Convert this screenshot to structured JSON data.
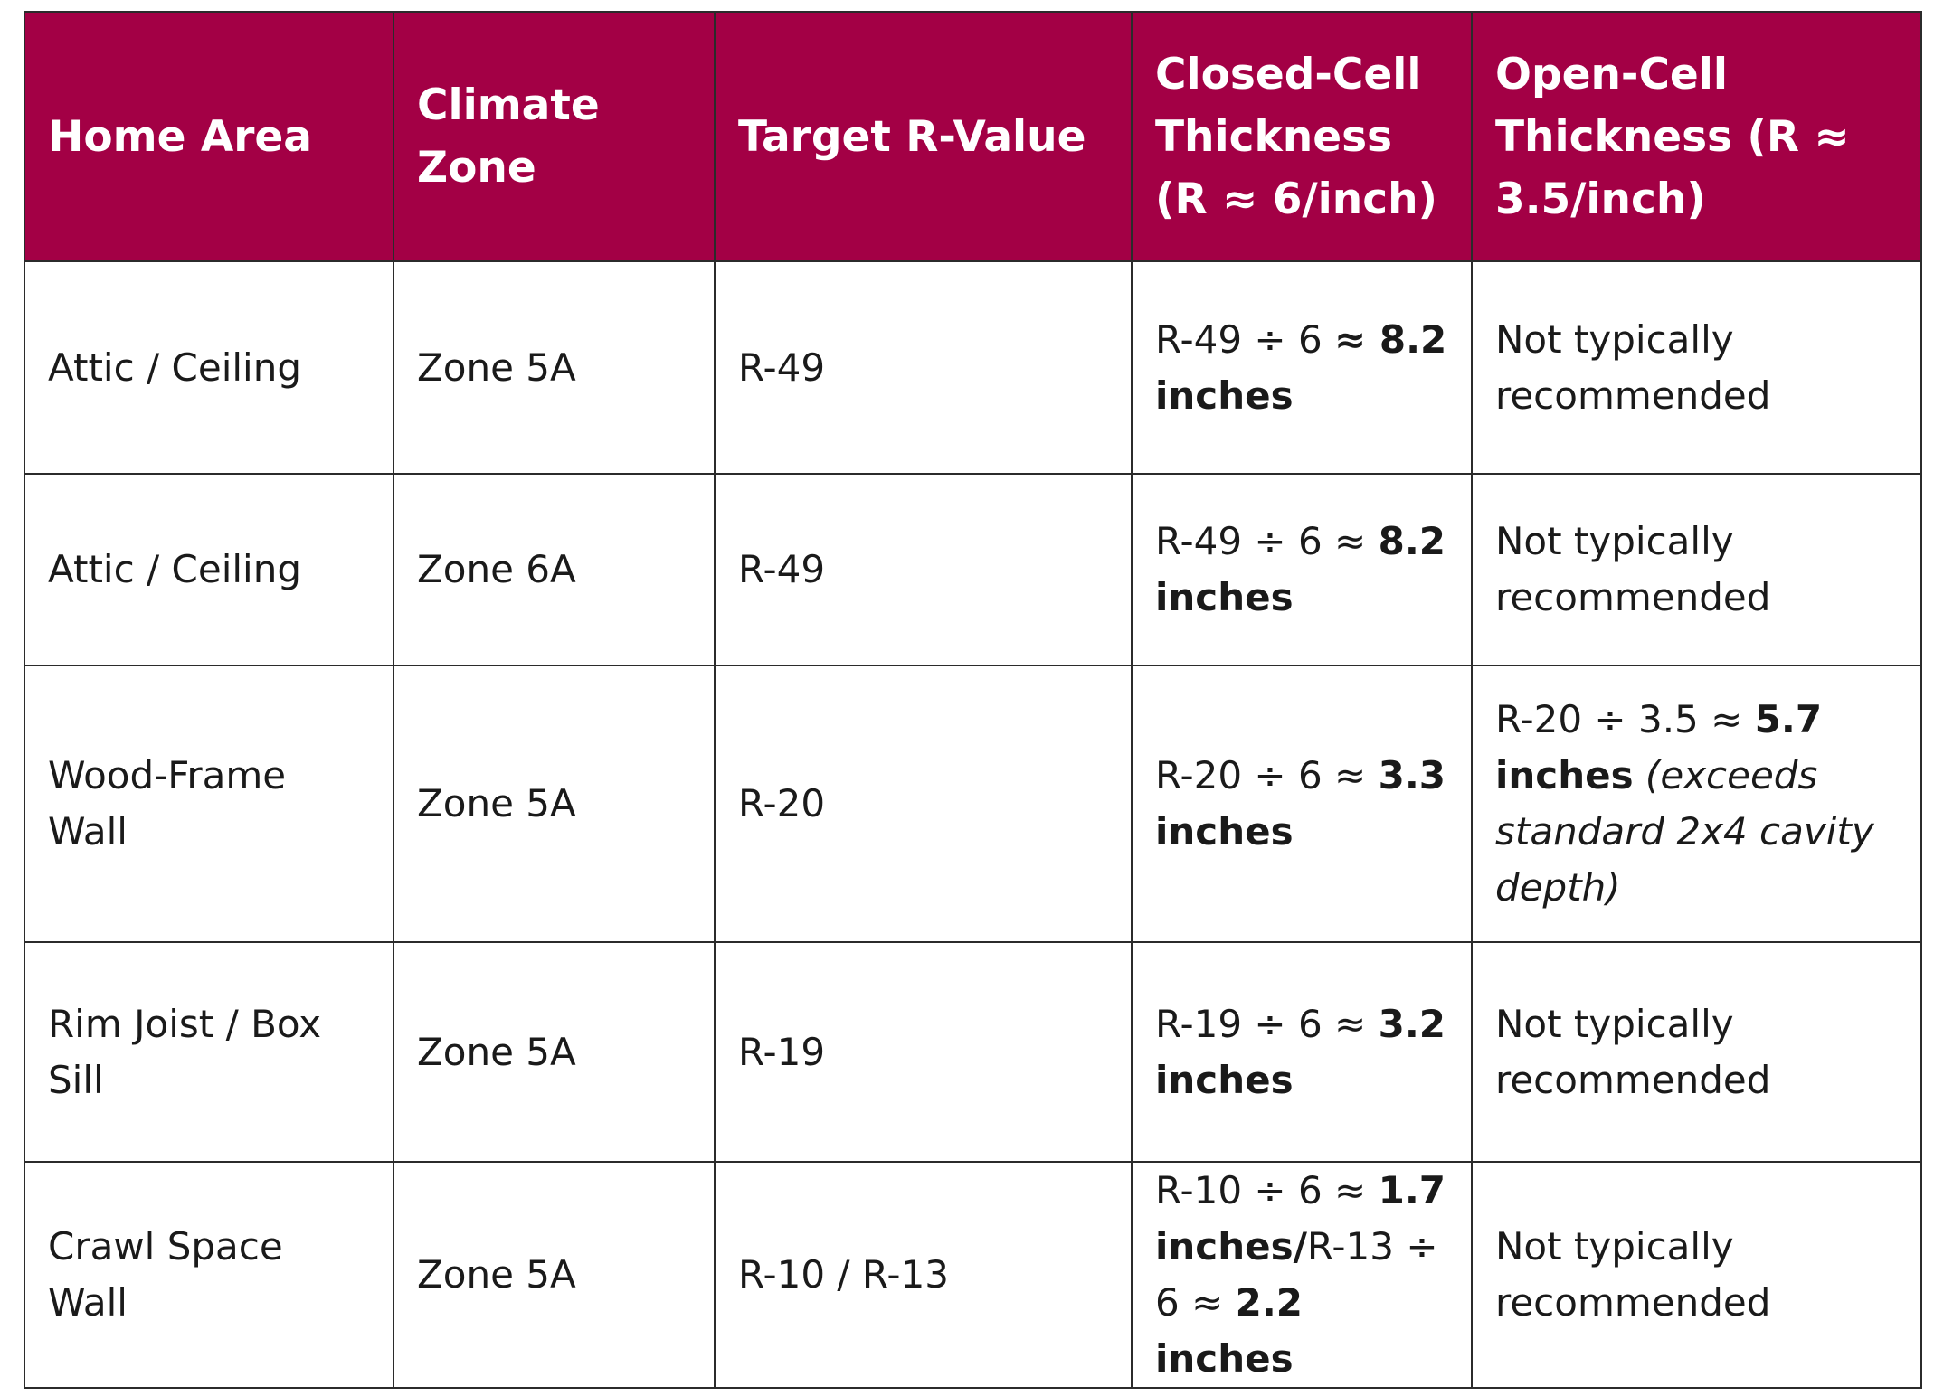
{
  "headers": {
    "home_area": "Home Area",
    "climate_zone": "Climate Zone",
    "target_r_value": "Target R-Value",
    "closed_cell": "Closed-Cell Thickness (R ≈ 6/inch)",
    "open_cell": "Open-Cell Thickness (R ≈ 3.5/inch)"
  },
  "rows": [
    {
      "home_area": "Attic / Ceiling",
      "climate_zone": "Zone 5A",
      "target_r_value": "R-49",
      "closed_cell": {
        "calc": "R-49 ÷ 6 ",
        "result": "≈ 8.2 inches"
      },
      "open_cell": {
        "text": "Not typically recommended"
      }
    },
    {
      "home_area": "Attic / Ceiling",
      "climate_zone": "Zone 6A",
      "target_r_value": "R-49",
      "closed_cell": {
        "calc": "R-49 ÷ 6 ≈ ",
        "result": "8.2 inches"
      },
      "open_cell": {
        "text": "Not typically recommended"
      }
    },
    {
      "home_area": "Wood-Frame Wall",
      "climate_zone": "Zone 5A",
      "target_r_value": "R-20",
      "closed_cell": {
        "calc": "R-20 ÷ 6 ≈ ",
        "result": "3.3 inches"
      },
      "open_cell": {
        "calc": "R-20 ÷ 3.5 ≈ ",
        "result": "5.7 inches",
        "note": " (exceeds standard 2x4 cavity depth)"
      }
    },
    {
      "home_area": "Rim Joist / Box Sill",
      "climate_zone": "Zone 5A",
      "target_r_value": "R-19",
      "closed_cell": {
        "calc": "R-19 ÷ 6 ≈ ",
        "result": "3.2 inches"
      },
      "open_cell": {
        "text": "Not typically recommended"
      }
    },
    {
      "home_area": "Crawl Space Wall",
      "climate_zone": "Zone 5A",
      "target_r_value": "R-10 / R-13",
      "closed_cell": {
        "calc": "R-10 ÷ 6 ≈ ",
        "result": "1.7 inches/",
        "calc2": "R-13 ÷ 6 ≈ ",
        "result2": "2.2 inches"
      },
      "open_cell": {
        "text": "Not typically recommended"
      }
    }
  ],
  "colors": {
    "header_bg": "#a30045",
    "header_text": "#ffffff",
    "border": "#2b2b2b"
  }
}
